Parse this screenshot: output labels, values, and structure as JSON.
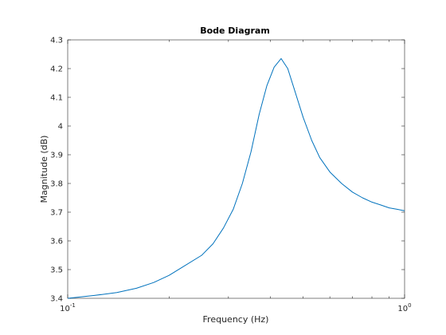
{
  "chart_data": {
    "type": "line",
    "title": "Bode Diagram",
    "xlabel": "Frequency  (Hz)",
    "ylabel": "Magnitude (dB)",
    "xscale": "log",
    "xlim": [
      0.1,
      1
    ],
    "ylim": [
      3.4,
      4.3
    ],
    "grid": false,
    "line_color": "#0072bd",
    "x_ticks": [
      {
        "value": 0.1,
        "base": "10",
        "exp": "-1"
      },
      {
        "value": 1,
        "base": "10",
        "exp": "0"
      }
    ],
    "y_ticks": [
      {
        "value": 3.4,
        "label": "3.4"
      },
      {
        "value": 3.5,
        "label": "3.5"
      },
      {
        "value": 3.6,
        "label": "3.6"
      },
      {
        "value": 3.7,
        "label": "3.7"
      },
      {
        "value": 3.8,
        "label": "3.8"
      },
      {
        "value": 3.9,
        "label": "3.9"
      },
      {
        "value": 4.0,
        "label": "4"
      },
      {
        "value": 4.1,
        "label": "4.1"
      },
      {
        "value": 4.2,
        "label": "4.2"
      },
      {
        "value": 4.3,
        "label": "4.3"
      }
    ],
    "series": [
      {
        "x": [
          0.1,
          0.12,
          0.14,
          0.16,
          0.18,
          0.2,
          0.22,
          0.25,
          0.27,
          0.29,
          0.31,
          0.33,
          0.35,
          0.37,
          0.39,
          0.41,
          0.43,
          0.45,
          0.47,
          0.5,
          0.53,
          0.56,
          0.6,
          0.65,
          0.7,
          0.75,
          0.8,
          0.85,
          0.9,
          0.95,
          1.0
        ],
        "y": [
          3.4,
          3.41,
          3.42,
          3.435,
          3.455,
          3.48,
          3.51,
          3.55,
          3.59,
          3.645,
          3.71,
          3.8,
          3.91,
          4.04,
          4.14,
          4.205,
          4.235,
          4.2,
          4.13,
          4.03,
          3.95,
          3.89,
          3.84,
          3.8,
          3.77,
          3.75,
          3.735,
          3.725,
          3.715,
          3.71,
          3.705
        ]
      }
    ]
  }
}
